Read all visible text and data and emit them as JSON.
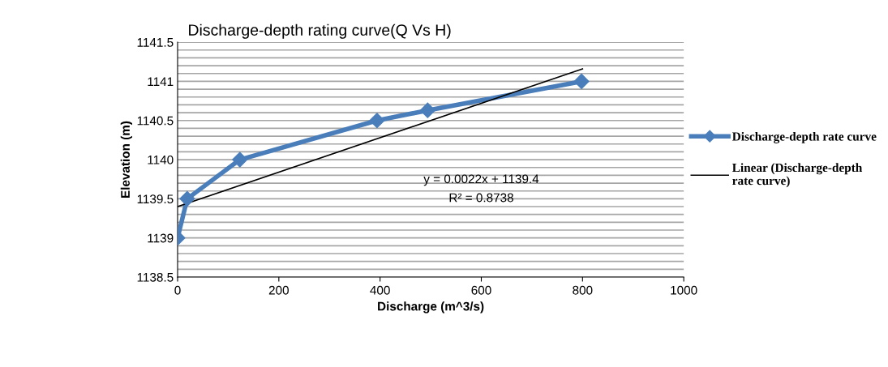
{
  "chart_data": {
    "type": "line",
    "title": "Discharge-depth rating curve(Q Vs H)",
    "xlabel": "Discharge (m^3/s)",
    "ylabel": "Elevation (m)",
    "series": [
      {
        "name": "Discharge-depth rate curve",
        "color": "#4a7ebb",
        "x": [
          0,
          19,
          123,
          394,
          494,
          798
        ],
        "values": [
          1139,
          1139.5,
          1140,
          1140.5,
          1140.63,
          1141
        ],
        "marker": "diamond"
      },
      {
        "name": "Linear (Discharge-depth rate curve)",
        "color": "#000000",
        "type": "line",
        "x": [
          0,
          800
        ],
        "values": [
          1139.4,
          1141.16
        ],
        "marker": "none"
      }
    ],
    "annotations": [
      "y = 0.0022x + 1139.4",
      "R² = 0.8738"
    ],
    "xlim": [
      0,
      1000
    ],
    "xticks": [
      0,
      200,
      400,
      600,
      800,
      1000
    ],
    "ylim": [
      1138.5,
      1141.5
    ],
    "yticks": [
      1138.5,
      {
        "value": 1138.6,
        "label": null
      },
      {
        "value": 1138.7,
        "label": null
      },
      {
        "value": 1138.8,
        "label": null
      },
      {
        "value": 1138.9,
        "label": null
      },
      1139,
      {
        "value": 1139.1,
        "label": null
      },
      {
        "value": 1139.2,
        "label": null
      },
      {
        "value": 1139.3,
        "label": null
      },
      {
        "value": 1139.4,
        "label": null
      },
      1139.5,
      {
        "value": 1139.6,
        "label": null
      },
      {
        "value": 1139.7,
        "label": null
      },
      {
        "value": 1139.8,
        "label": null
      },
      {
        "value": 1139.9,
        "label": null
      },
      1140,
      {
        "value": 1140.1,
        "label": null
      },
      {
        "value": 1140.2,
        "label": null
      },
      {
        "value": 1140.3,
        "label": null
      },
      {
        "value": 1140.4,
        "label": null
      },
      1140.5,
      {
        "value": 1140.6,
        "label": null
      },
      {
        "value": 1140.7,
        "label": null
      },
      {
        "value": 1140.8,
        "label": null
      },
      {
        "value": 1140.9,
        "label": null
      },
      1141,
      {
        "value": 1141.1,
        "label": null
      },
      {
        "value": 1141.2,
        "label": null
      },
      {
        "value": 1141.3,
        "label": null
      },
      {
        "value": 1141.4,
        "label": null
      },
      1141.5
    ],
    "grid": "y",
    "legend": "right"
  }
}
